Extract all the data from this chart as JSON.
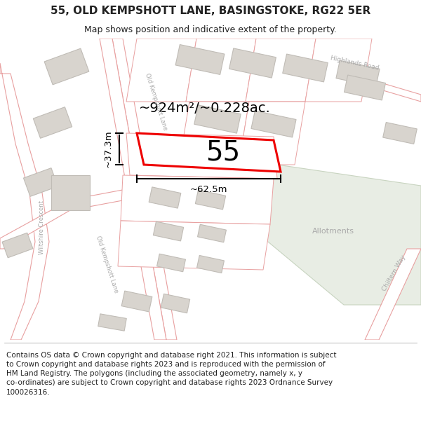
{
  "title": "55, OLD KEMPSHOTT LANE, BASINGSTOKE, RG22 5ER",
  "subtitle": "Map shows position and indicative extent of the property.",
  "footer_lines": [
    "Contains OS data © Crown copyright and database right 2021. This information is subject to Crown copyright and database rights 2023 and is reproduced with the permission of",
    "HM Land Registry. The polygons (including the associated geometry, namely x, y co-ordinates) are subject to Crown copyright and database rights 2023 Ordnance Survey",
    "100026316."
  ],
  "area_label": "~924m²/~0.228ac.",
  "width_label": "~62.5m",
  "height_label": "~37.3m",
  "number_label": "55",
  "map_bg": "#ffffff",
  "road_stroke": "#e8a0a0",
  "road_fill": "#ffffff",
  "highlight_color": "#ee0000",
  "building_fill": "#d8d4ce",
  "building_stroke": "#c0bcb6",
  "green_fill": "#e8ede4",
  "green_stroke": "#c8d4c0",
  "dim_line_color": "#111111",
  "text_color": "#222222",
  "road_label_color": "#aaaaaa",
  "allot_label_color": "#aaaaaa",
  "title_fontsize": 11,
  "subtitle_fontsize": 9,
  "footer_fontsize": 7.5,
  "area_fontsize": 14,
  "number_fontsize": 28,
  "dim_fontsize": 9.5
}
